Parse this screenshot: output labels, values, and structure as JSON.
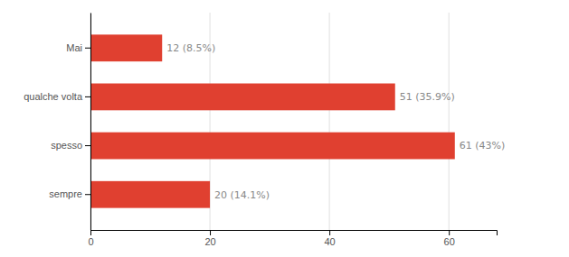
{
  "chart_data": {
    "type": "bar",
    "orientation": "horizontal",
    "categories": [
      "sempre",
      "spesso",
      "qualche volta",
      "Mai"
    ],
    "values": [
      20,
      61,
      51,
      12
    ],
    "value_labels": [
      "20 (14.1%)",
      "61 (43%)",
      "51 (35.9%)",
      "12 (8.5%)"
    ],
    "data_labels": true,
    "color": "#e04030",
    "xlim": [
      0,
      68
    ],
    "xticks": [
      0,
      20,
      40,
      60
    ],
    "grid": true
  }
}
